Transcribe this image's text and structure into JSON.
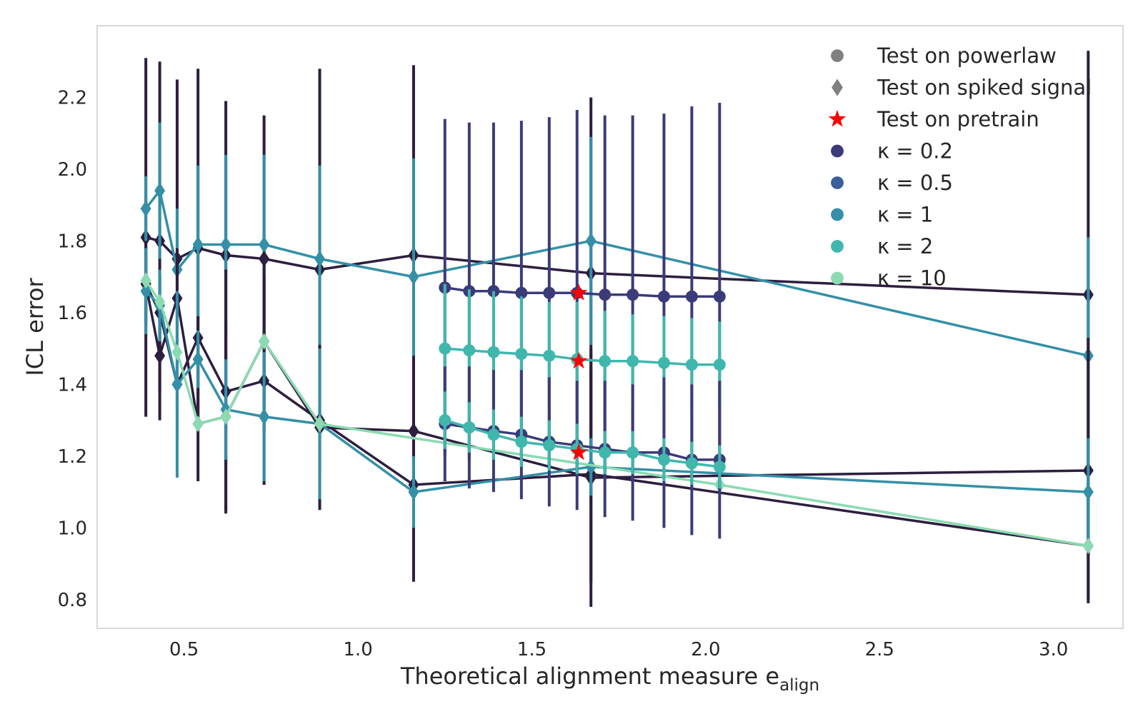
{
  "chart_data": {
    "type": "line",
    "title": "",
    "xlabel": "Theoretical alignment measure e",
    "xlabel_sub": "align",
    "ylabel": "ICL error",
    "xlim": [
      0.25,
      3.2
    ],
    "ylim": [
      0.72,
      2.4
    ],
    "xticks": [
      "0.5",
      "1.0",
      "1.5",
      "2.0",
      "2.5",
      "3.0"
    ],
    "yticks": [
      "0.8",
      "1.0",
      "1.2",
      "1.4",
      "1.6",
      "1.8",
      "2.0",
      "2.2"
    ],
    "grid": false,
    "legend_position": "top-right",
    "colors": {
      "kappa_0.2": "#3b3b7a",
      "kappa_0.5": "#3a5f9b",
      "kappa_1": "#348fa7",
      "kappa_2": "#40b7ad",
      "kappa_10": "#8bdab2",
      "dark": "#2d1e3e",
      "pretrain": "#ff0000",
      "legend_marker": "#808080"
    },
    "legend": [
      {
        "label": "Test on powerlaw",
        "marker": "circle",
        "color": "legend_marker"
      },
      {
        "label": "Test on spiked signal",
        "marker": "diamond",
        "color": "legend_marker"
      },
      {
        "label": "Test on pretrain",
        "marker": "star",
        "color": "pretrain"
      },
      {
        "label": "κ =  0.2",
        "marker": "circle",
        "color": "kappa_0.2"
      },
      {
        "label": "κ =  0.5",
        "marker": "circle",
        "color": "kappa_0.5"
      },
      {
        "label": "κ =  1",
        "marker": "circle",
        "color": "kappa_1"
      },
      {
        "label": "κ =  2",
        "marker": "circle",
        "color": "kappa_2"
      },
      {
        "label": "κ =  10",
        "marker": "circle",
        "color": "kappa_10"
      }
    ],
    "series": [
      {
        "marker": "diamond",
        "color": "dark",
        "errcolor": "dark",
        "x": [
          0.39,
          0.43,
          0.48,
          0.54,
          0.62,
          0.73,
          0.89,
          1.16,
          1.67,
          3.1
        ],
        "y": [
          1.81,
          1.8,
          1.75,
          1.78,
          1.76,
          1.75,
          1.72,
          1.76,
          1.71,
          1.65
        ],
        "err": [
          0.5,
          0.5,
          0.5,
          0.5,
          0.43,
          0.4,
          0.56,
          0.53,
          0.49,
          0.68
        ]
      },
      {
        "marker": "diamond",
        "color": "kappa_1",
        "errcolor": "kappa_1",
        "x": [
          0.39,
          0.43,
          0.48,
          0.54,
          0.62,
          0.73,
          0.89,
          1.16,
          1.67,
          3.1
        ],
        "y": [
          1.89,
          1.94,
          1.72,
          1.79,
          1.79,
          1.79,
          1.75,
          1.7,
          1.8,
          1.48
        ],
        "err": [
          0.09,
          0.19,
          0.17,
          0.22,
          0.25,
          0.25,
          0.26,
          0.33,
          0.29,
          0.33
        ]
      },
      {
        "marker": "diamond",
        "color": "dark",
        "errcolor": "dark",
        "x": [
          0.39,
          0.43,
          0.48,
          0.54,
          0.62,
          0.73,
          0.89,
          1.16,
          1.67,
          3.1
        ],
        "y": [
          1.68,
          1.48,
          1.64,
          1.29,
          1.31,
          1.52,
          1.28,
          1.27,
          1.14,
          1.16
        ],
        "err": [
          0.12,
          0.1,
          0.14,
          0.16,
          0.26,
          0.25,
          0.23,
          0.21,
          0.36,
          0.37
        ]
      },
      {
        "marker": "diamond",
        "color": "dark",
        "errcolor": "dark",
        "x": [
          0.39,
          0.43,
          0.48,
          0.54,
          0.62,
          0.73,
          0.89,
          1.16,
          1.67,
          3.1
        ],
        "y": [
          1.68,
          1.6,
          1.4,
          1.53,
          1.38,
          1.41,
          1.3,
          1.12,
          1.15,
          0.95
        ],
        "err": [
          0.1,
          0.1,
          0.06,
          0.06,
          0.34,
          0.29,
          0.21,
          0.27,
          0.3,
          0.15
        ]
      },
      {
        "marker": "diamond",
        "color": "kappa_1",
        "errcolor": "kappa_1",
        "x": [
          0.39,
          0.43,
          0.48,
          0.54,
          0.62,
          0.73,
          0.89,
          1.16,
          1.67,
          3.1
        ],
        "y": [
          1.66,
          1.62,
          1.4,
          1.47,
          1.33,
          1.31,
          1.29,
          1.1,
          1.17,
          1.1
        ],
        "err": [
          0.12,
          0.1,
          0.26,
          0.08,
          0.14,
          0.18,
          0.21,
          0.1,
          0.08,
          0.15
        ]
      },
      {
        "marker": "diamond",
        "color": "kappa_10",
        "errcolor": "kappa_10",
        "x": [
          0.39,
          0.43,
          0.48,
          0.54,
          0.62,
          0.73,
          0.89,
          2.04,
          3.1
        ],
        "y": [
          1.69,
          1.63,
          1.49,
          1.29,
          1.31,
          1.52,
          1.29,
          1.12,
          0.95
        ],
        "err": [
          0,
          0,
          0,
          0,
          0,
          0,
          0,
          0,
          0
        ]
      },
      {
        "marker": "circle",
        "color": "kappa_0.2",
        "errcolor": "kappa_0.2",
        "x": [
          1.25,
          1.32,
          1.39,
          1.47,
          1.55,
          1.63,
          1.71,
          1.79,
          1.88,
          1.96,
          2.04
        ],
        "y": [
          1.67,
          1.66,
          1.66,
          1.655,
          1.655,
          1.655,
          1.65,
          1.65,
          1.645,
          1.645,
          1.645
        ],
        "err": [
          0.47,
          0.47,
          0.47,
          0.48,
          0.49,
          0.51,
          0.5,
          0.5,
          0.51,
          0.53,
          0.54
        ]
      },
      {
        "marker": "circle",
        "color": "kappa_2",
        "errcolor": "kappa_2",
        "x": [
          1.25,
          1.32,
          1.39,
          1.47,
          1.55,
          1.63,
          1.71,
          1.79,
          1.88,
          1.96,
          2.04
        ],
        "y": [
          1.5,
          1.495,
          1.49,
          1.485,
          1.48,
          1.47,
          1.465,
          1.465,
          1.46,
          1.455,
          1.455
        ],
        "err": [
          0.18,
          0.17,
          0.17,
          0.16,
          0.15,
          0.16,
          0.14,
          0.13,
          0.13,
          0.13,
          0.12
        ]
      },
      {
        "marker": "circle",
        "color": "kappa_0.2",
        "errcolor": "kappa_0.2",
        "x": [
          1.25,
          1.32,
          1.39,
          1.47,
          1.55,
          1.63,
          1.71,
          1.79,
          1.88,
          1.96,
          2.04
        ],
        "y": [
          1.29,
          1.28,
          1.27,
          1.26,
          1.24,
          1.23,
          1.22,
          1.21,
          1.21,
          1.19,
          1.19
        ],
        "err": [
          0.16,
          0.17,
          0.17,
          0.18,
          0.18,
          0.18,
          0.19,
          0.19,
          0.21,
          0.21,
          0.22
        ]
      },
      {
        "marker": "circle",
        "color": "kappa_2",
        "errcolor": "kappa_2",
        "x": [
          1.25,
          1.32,
          1.39,
          1.47,
          1.55,
          1.63,
          1.71,
          1.79,
          1.88,
          1.96,
          2.04
        ],
        "y": [
          1.3,
          1.28,
          1.26,
          1.24,
          1.23,
          1.22,
          1.21,
          1.21,
          1.19,
          1.18,
          1.17
        ],
        "err": [
          0.08,
          0.07,
          0.07,
          0.07,
          0.07,
          0.07,
          0.06,
          0.06,
          0.06,
          0.06,
          0.06
        ]
      }
    ],
    "pretrain_points": {
      "x": [
        1.635,
        1.635,
        1.635
      ],
      "y": [
        1.655,
        1.465,
        1.21
      ]
    }
  }
}
